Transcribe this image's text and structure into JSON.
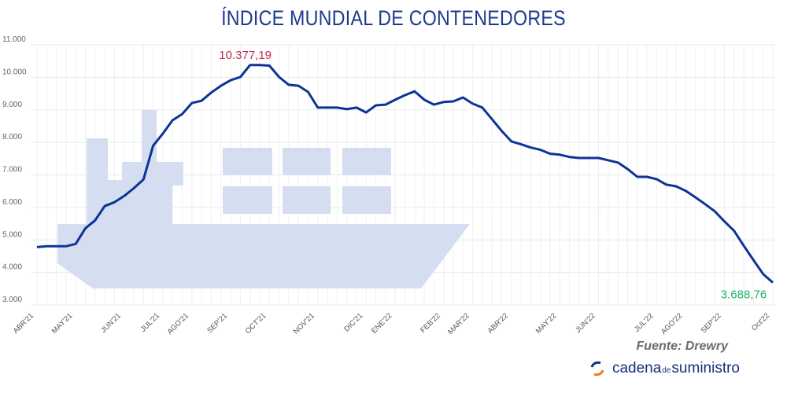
{
  "chart_data": {
    "type": "line",
    "title": "ÍNDICE MUNDIAL DE CONTENEDORES",
    "source": "Fuente: Drewry",
    "ylim": [
      3000,
      11000
    ],
    "yticks": [
      3000,
      4000,
      5000,
      6000,
      7000,
      8000,
      9000,
      10000,
      11000
    ],
    "ytick_labels": [
      "3.000",
      "4.000",
      "5.000",
      "6.000",
      "7.000",
      "8.000",
      "9.000",
      "10.000",
      "11.000"
    ],
    "grid": "on (light, vertical weekly and horizontal)",
    "line_color": "#0b3595",
    "x": [
      "2021-04-22",
      "2021-04-29",
      "2021-05-06",
      "2021-05-13",
      "2021-05-20",
      "2021-05-27",
      "2021-06-03",
      "2021-06-10",
      "2021-06-17",
      "2021-06-24",
      "2021-07-01",
      "2021-07-08",
      "2021-07-15",
      "2021-07-22",
      "2021-07-29",
      "2021-08-05",
      "2021-08-12",
      "2021-08-19",
      "2021-08-26",
      "2021-09-02",
      "2021-09-09",
      "2021-09-16",
      "2021-09-23",
      "2021-09-30",
      "2021-10-07",
      "2021-10-14",
      "2021-10-21",
      "2021-10-28",
      "2021-11-04",
      "2021-11-11",
      "2021-11-18",
      "2021-11-25",
      "2021-12-02",
      "2021-12-09",
      "2021-12-16",
      "2021-12-23",
      "2021-12-30",
      "2022-01-06",
      "2022-01-13",
      "2022-01-20",
      "2022-01-27",
      "2022-02-03",
      "2022-02-10",
      "2022-02-17",
      "2022-02-24",
      "2022-03-03",
      "2022-03-10",
      "2022-03-17",
      "2022-03-24",
      "2022-03-31",
      "2022-04-07",
      "2022-04-14",
      "2022-04-21",
      "2022-04-28",
      "2022-05-05",
      "2022-05-12",
      "2022-05-19",
      "2022-05-26",
      "2022-06-02",
      "2022-06-09",
      "2022-06-16",
      "2022-06-23",
      "2022-06-30",
      "2022-07-07",
      "2022-07-14",
      "2022-07-21",
      "2022-07-28",
      "2022-08-04",
      "2022-08-11",
      "2022-08-18",
      "2022-08-25",
      "2022-09-01",
      "2022-09-08",
      "2022-09-15",
      "2022-09-22",
      "2022-09-29",
      "2022-10-06"
    ],
    "values": [
      4780,
      4805,
      4805,
      4805,
      4878,
      5360,
      5600,
      6040,
      6160,
      6350,
      6590,
      6860,
      7900,
      8270,
      8680,
      8870,
      9210,
      9280,
      9530,
      9740,
      9910,
      10010,
      10377.19,
      10377,
      10360,
      10010,
      9770,
      9740,
      9550,
      9070,
      9070,
      9070,
      9020,
      9070,
      8920,
      9140,
      9160,
      9310,
      9450,
      9570,
      9310,
      9160,
      9240,
      9260,
      9380,
      9190,
      9070,
      8710,
      8350,
      8030,
      7940,
      7840,
      7770,
      7650,
      7620,
      7550,
      7520,
      7520,
      7520,
      7450,
      7380,
      7180,
      6940,
      6940,
      6870,
      6700,
      6650,
      6510,
      6310,
      6100,
      5880,
      5570,
      5280,
      4820,
      4380,
      3950,
      3688.76
    ],
    "xticks": [
      {
        "label": "ABR'21",
        "date": "2021-04-22"
      },
      {
        "label": "MAY'21",
        "date": "2021-05-20"
      },
      {
        "label": "JUN'21",
        "date": "2021-06-24"
      },
      {
        "label": "JUL'21",
        "date": "2021-07-22"
      },
      {
        "label": "AGO'21",
        "date": "2021-08-12"
      },
      {
        "label": "SEP'21",
        "date": "2021-09-09"
      },
      {
        "label": "OCT'21",
        "date": "2021-10-07"
      },
      {
        "label": "NOV'21",
        "date": "2021-11-11"
      },
      {
        "label": "DIC'21",
        "date": "2021-12-16"
      },
      {
        "label": "ENE'22",
        "date": "2022-01-06"
      },
      {
        "label": "FEB'22",
        "date": "2022-02-10"
      },
      {
        "label": "MAR'22",
        "date": "2022-03-03"
      },
      {
        "label": "ABR'22",
        "date": "2022-03-31"
      },
      {
        "label": "MAY'22",
        "date": "2022-05-05"
      },
      {
        "label": "JUN'22",
        "date": "2022-06-02"
      },
      {
        "label": "JUL'22",
        "date": "2022-07-14"
      },
      {
        "label": "AGO'22",
        "date": "2022-08-04"
      },
      {
        "label": "SEP'22",
        "date": "2022-09-01"
      },
      {
        "label": "Oct'22",
        "date": "2022-10-06"
      }
    ],
    "annotations": [
      {
        "text": "10.377,19",
        "date": "2021-09-23",
        "value": 10377.19,
        "color": "#c0304e"
      },
      {
        "text": "3.688,76",
        "date": "2022-10-06",
        "value": 3688.76,
        "color": "#21b26a"
      }
    ],
    "background_icon": "cargo-ship-icon",
    "background_icon_color": "#d5ddf1"
  },
  "logo": {
    "part1": "cadena",
    "part2": "de",
    "part3": "suministro",
    "icon": "circular-arrows-icon"
  }
}
